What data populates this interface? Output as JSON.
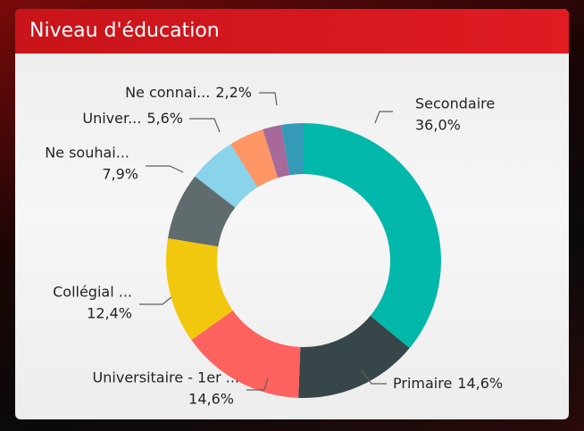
{
  "chart_data": {
    "type": "donut",
    "title": "Niveau d'éducation",
    "categories": [
      "Secondaire",
      "Primaire",
      "Universitaire - 1er ...",
      "Collégial ...",
      "Ne souhai...",
      "Univer...",
      null,
      "Ne connai...",
      null
    ],
    "values": [
      36.0,
      14.6,
      14.6,
      12.4,
      7.9,
      5.6,
      4.1,
      2.2,
      2.6
    ],
    "value_labels": [
      "36,0%",
      "14,6%",
      "14,6%",
      "12,4%",
      "7,9%",
      "5,6%",
      null,
      "2,2%",
      null
    ],
    "colors": [
      "#01b8aa",
      "#374649",
      "#fd625e",
      "#f2c80f",
      "#5f6b6d",
      "#8ad4eb",
      "#fe9666",
      "#a66999",
      "#3599b8"
    ]
  }
}
